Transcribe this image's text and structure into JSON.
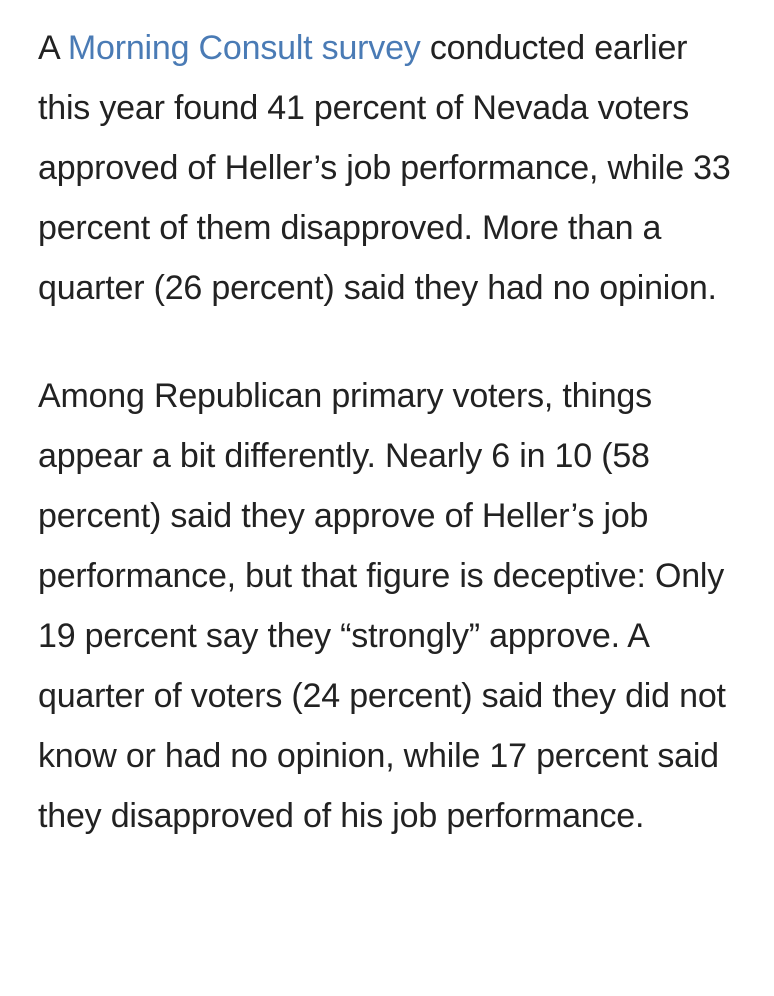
{
  "article": {
    "paragraph_1": {
      "lead": "A ",
      "link_text": "Morning Consult survey",
      "body": " conducted earlier this year found 41 percent of Nevada voters approved of Heller’s job performance, while 33 percent of them disapproved. More than a quarter (26 percent) said they had no opinion."
    },
    "paragraph_2": {
      "body": "Among Republican primary voters, things appear a bit differently. Nearly 6 in 10 (58 percent) said they approve of Heller’s job performance, but that figure is deceptive: Only 19 percent say they “strongly” approve. A quarter of voters (24 percent) said they did not know or had no opinion, while 17 percent said they disapproved of his job performance."
    },
    "colors": {
      "text": "#222222",
      "link": "#4a7bb5",
      "background": "#ffffff"
    }
  }
}
